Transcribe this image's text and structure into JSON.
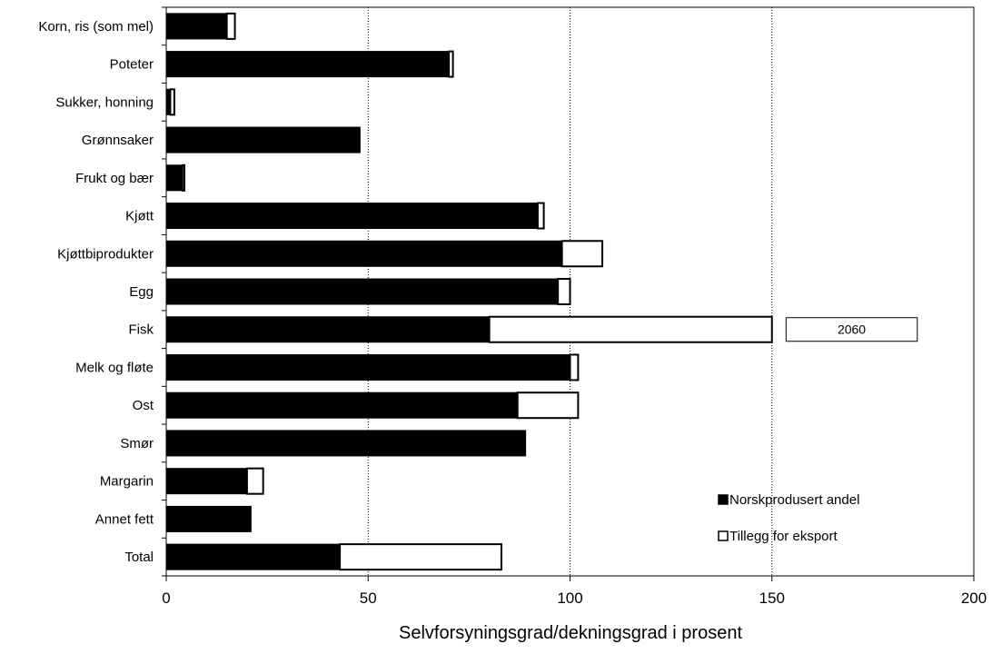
{
  "chart_data": {
    "type": "bar",
    "orientation": "horizontal",
    "stacked": true,
    "categories": [
      "Korn, ris (som mel)",
      "Poteter",
      "Sukker, honning",
      "Grønnsaker",
      "Frukt og bær",
      "Kjøtt",
      "Kjøttbiprodukter",
      "Egg",
      "Fisk",
      "Melk og fløte",
      "Ost",
      "Smør",
      "Margarin",
      "Annet fett",
      "Total"
    ],
    "series": [
      {
        "name": "Norskprodusert andel",
        "color": "#000000",
        "values": [
          15,
          70,
          1,
          48,
          4,
          92,
          98,
          97,
          80,
          100,
          87,
          89,
          20,
          21,
          43
        ]
      },
      {
        "name": "Tillegg for eksport",
        "color": "#ffffff",
        "values": [
          2,
          1,
          1,
          0,
          0.5,
          1.5,
          10,
          3,
          70,
          2,
          15,
          0,
          4,
          0,
          40
        ]
      }
    ],
    "xlabel": "Selvforsyningsgrad/dekningsgrad i prosent",
    "ylabel": "",
    "xlim": [
      0,
      200
    ],
    "xticks": [
      0,
      50,
      100,
      150,
      200
    ],
    "grid": "vertical dotted",
    "legend_position": "bottom-right",
    "annotations": [
      {
        "category": "Fisk",
        "text": "2060"
      }
    ]
  }
}
